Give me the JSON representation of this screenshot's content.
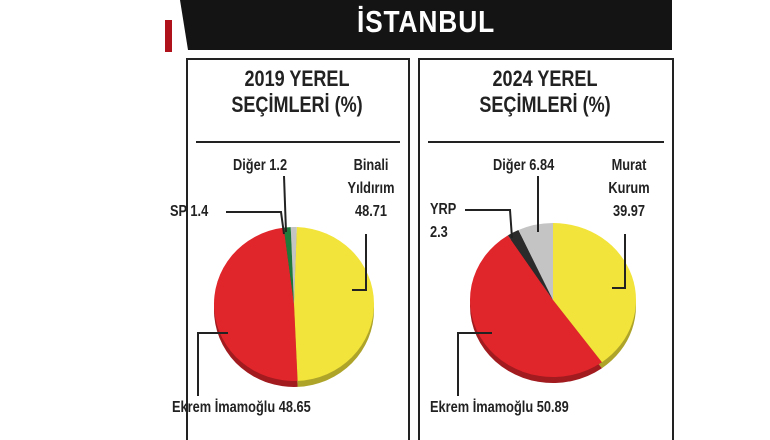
{
  "header": {
    "title": "İSTANBUL"
  },
  "colors": {
    "yellow": "#f2e43a",
    "red": "#e0252b",
    "green": "#1f7a3a",
    "gray": "#c4c4c4",
    "dark": "#2b2b2b",
    "banner": "#141414"
  },
  "chart_data": [
    {
      "type": "pie",
      "title": "2019 YEREL SEÇİMLERİ (%)",
      "slices": [
        {
          "label": "Binali Yıldırım",
          "value": 48.71,
          "color": "#f2e43a"
        },
        {
          "label": "Ekrem İmamoğlu",
          "value": 48.65,
          "color": "#e0252b"
        },
        {
          "label": "SP",
          "value": 1.4,
          "color": "#1f7a3a"
        },
        {
          "label": "Diğer",
          "value": 1.2,
          "color": "#c4c4c4"
        }
      ],
      "labels": {
        "top": "Diğer 1.2",
        "left": "SP 1.4",
        "right_name1": "Binali",
        "right_name2": "Yıldırım",
        "right_value": "48.71",
        "bottom": "Ekrem İmamoğlu  48.65"
      }
    },
    {
      "type": "pie",
      "title": "2024 YEREL SEÇİMLERİ (%)",
      "slices": [
        {
          "label": "Murat Kurum",
          "value": 39.97,
          "color": "#f2e43a"
        },
        {
          "label": "Ekrem İmamoğlu",
          "value": 50.89,
          "color": "#e0252b"
        },
        {
          "label": "YRP",
          "value": 2.3,
          "color": "#2b2b2b"
        },
        {
          "label": "Diğer",
          "value": 6.84,
          "color": "#c4c4c4"
        }
      ],
      "labels": {
        "top": "Diğer 6.84",
        "left_name": "YRP",
        "left_value": "2.3",
        "right_name1": "Murat",
        "right_name2": "Kurum",
        "right_value": "39.97",
        "bottom": "Ekrem İmamoğlu  50.89"
      }
    }
  ],
  "titles": {
    "left_line1": "2019 YEREL",
    "left_line2": "SEÇİMLERİ (%)",
    "right_line1": "2024 YEREL",
    "right_line2": "SEÇİMLERİ (%)"
  }
}
